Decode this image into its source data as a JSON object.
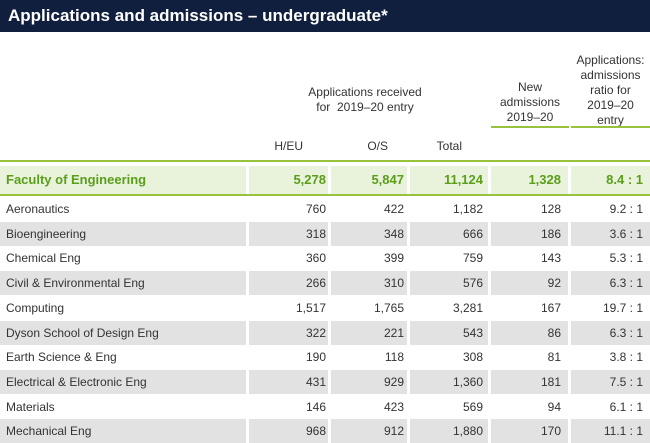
{
  "title": "Applications and admissions – undergraduate*",
  "headers": {
    "applications_line1": "Applications received",
    "applications_line2": "for  2019–20 entry",
    "new_line1": "New",
    "new_line2": "admissions",
    "new_line3": "2019–20",
    "ratio_line1": "Applications:",
    "ratio_line2": "admissions",
    "ratio_line3": "ratio for",
    "ratio_line4": "2019–20",
    "ratio_line5": "entry",
    "heu": "H/EU",
    "os": "O/S",
    "total": "Total"
  },
  "faculty": {
    "name": "Faculty of Engineering",
    "heu": "5,278",
    "os": "5,847",
    "total": "11,124",
    "new_admissions": "1,328",
    "ratio": "8.4 : 1"
  },
  "rows": [
    {
      "name": "Aeronautics",
      "heu": "760",
      "os": "422",
      "total": "1,182",
      "new_admissions": "128",
      "ratio": "9.2 : 1"
    },
    {
      "name": "Bioengineering",
      "heu": "318",
      "os": "348",
      "total": "666",
      "new_admissions": "186",
      "ratio": "3.6 : 1"
    },
    {
      "name": "Chemical Eng",
      "heu": "360",
      "os": "399",
      "total": "759",
      "new_admissions": "143",
      "ratio": "5.3 : 1"
    },
    {
      "name": "Civil & Environmental Eng",
      "heu": "266",
      "os": "310",
      "total": "576",
      "new_admissions": "92",
      "ratio": "6.3 : 1"
    },
    {
      "name": "Computing",
      "heu": "1,517",
      "os": "1,765",
      "total": "3,281",
      "new_admissions": "167",
      "ratio": "19.7 : 1"
    },
    {
      "name": "Dyson School of Design Eng",
      "heu": "322",
      "os": "221",
      "total": "543",
      "new_admissions": "86",
      "ratio": "6.3 : 1"
    },
    {
      "name": "Earth Science & Eng",
      "heu": "190",
      "os": "118",
      "total": "308",
      "new_admissions": "81",
      "ratio": "3.8 : 1"
    },
    {
      "name": "Electrical & Electronic Eng",
      "heu": "431",
      "os": "929",
      "total": "1,360",
      "new_admissions": "181",
      "ratio": "7.5 : 1"
    },
    {
      "name": "Materials",
      "heu": "146",
      "os": "423",
      "total": "569",
      "new_admissions": "94",
      "ratio": "6.1 : 1"
    },
    {
      "name": "Mechanical Eng",
      "heu": "968",
      "os": "912",
      "total": "1,880",
      "new_admissions": "170",
      "ratio": "11.1 : 1"
    }
  ],
  "colors": {
    "title_bg": "#0f1f3d",
    "accent_green": "#97c33c",
    "faculty_text": "#5a9e1a",
    "faculty_bg": "#e9f3dc",
    "row_shade": "#e2e2e2"
  }
}
